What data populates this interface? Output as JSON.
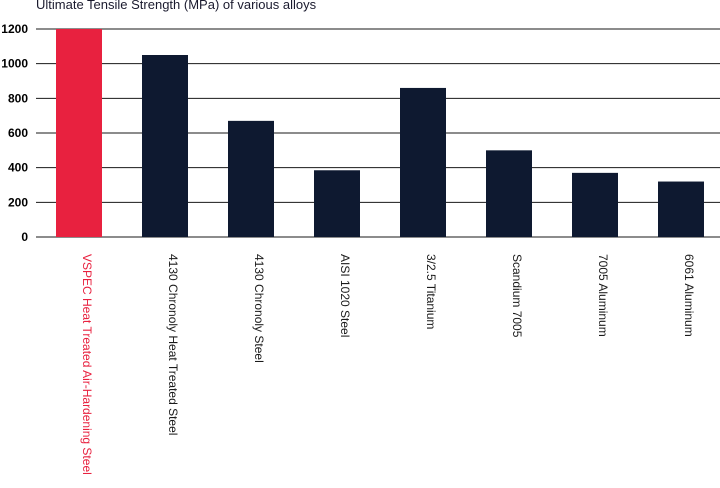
{
  "chart_data": {
    "type": "bar",
    "title": "Ultimate Tensile Strength (MPa) of various alloys",
    "xlabel": "",
    "ylabel": "",
    "ylim": [
      0,
      1200
    ],
    "yticks": [
      0,
      200,
      400,
      600,
      800,
      1000,
      1200
    ],
    "grid": true,
    "categories": [
      "VSPEC Heat Treated Air-Hardening Steel",
      "4130 Chronoly Heat Treated Steel",
      "4130 Chronoly Steel",
      "AISI 1020 Steel",
      "3/2.5 Titanium",
      "Scandium 7005",
      "7005 Aluminum",
      "6061 Aluminum"
    ],
    "values": [
      1200,
      1050,
      670,
      385,
      860,
      500,
      370,
      320
    ],
    "highlight_index": 0,
    "colors": {
      "highlight": "#e8213f",
      "bar": "#0e1930",
      "grid": "#1a1a1a",
      "title": "#1a1a2e",
      "label": "#1a1a1a"
    }
  }
}
